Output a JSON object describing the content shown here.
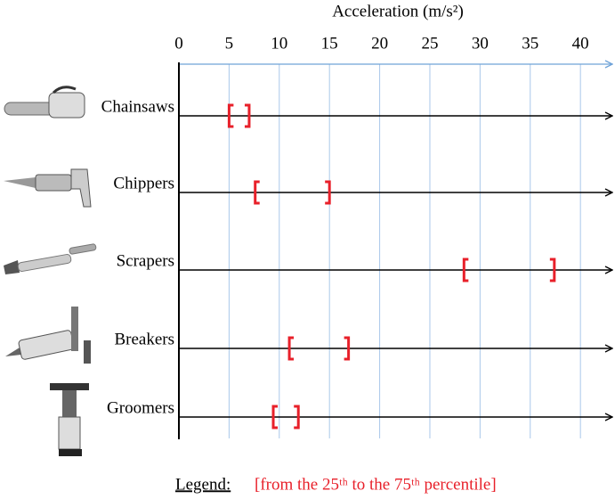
{
  "chart_data": {
    "type": "range",
    "x_label": "Acceleration (m/s²)",
    "categories": [
      "Chainsaws",
      "Chippers",
      "Scrapers",
      "Breakers",
      "Groomers"
    ],
    "low": [
      5,
      7.6,
      28.4,
      11,
      9.4
    ],
    "high": [
      7,
      15,
      37.4,
      16.9,
      11.9
    ],
    "color": "#e8202a",
    "xlim": [
      0,
      43
    ],
    "xticks": [
      0,
      5,
      10,
      15,
      20,
      25,
      30,
      35,
      40
    ],
    "grid": true,
    "legend_title": "Legend:",
    "legend_text": "[from the 25ᵗʰ to the 75ᵗʰ percentile]"
  }
}
